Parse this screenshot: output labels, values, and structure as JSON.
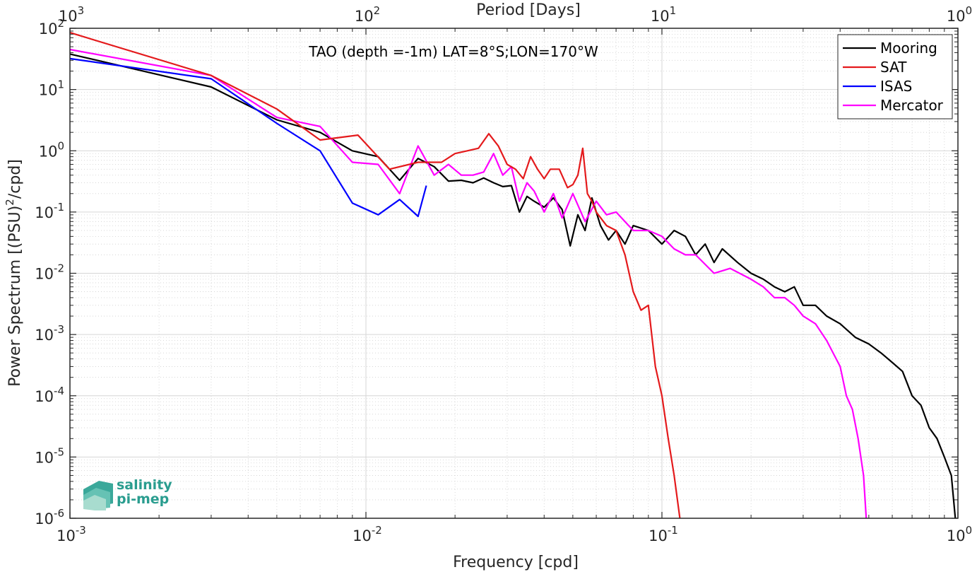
{
  "chart_data": {
    "type": "line",
    "annotation": "TAO (depth =-1m) LAT=8°S;LON=170°W",
    "xlabel": "Frequency [cpd]",
    "ylabel_prefix": "Power Spectrum [(PSU)",
    "ylabel_sup": "2",
    "ylabel_suffix": "/cpd]",
    "top_xlabel": "Period [Days]",
    "x_scale": "log",
    "y_scale": "log",
    "xlim": [
      0.001,
      1
    ],
    "ylim": [
      1e-06,
      100
    ],
    "grid": true,
    "legend_position": "top-right",
    "x_ticks": [
      {
        "value": 0.001,
        "base": "10",
        "exp": "-3"
      },
      {
        "value": 0.01,
        "base": "10",
        "exp": "-2"
      },
      {
        "value": 0.1,
        "base": "10",
        "exp": "-1"
      },
      {
        "value": 1,
        "base": "10",
        "exp": "0"
      }
    ],
    "top_ticks": [
      {
        "value": 0.001,
        "base": "10",
        "exp": "3"
      },
      {
        "value": 0.01,
        "base": "10",
        "exp": "2"
      },
      {
        "value": 0.1,
        "base": "10",
        "exp": "1"
      },
      {
        "value": 1,
        "base": "10",
        "exp": "0"
      }
    ],
    "y_ticks": [
      {
        "value": 100,
        "base": "10",
        "exp": "2"
      },
      {
        "value": 10,
        "base": "10",
        "exp": "1"
      },
      {
        "value": 1,
        "base": "10",
        "exp": "0"
      },
      {
        "value": 0.1,
        "base": "10",
        "exp": "-1"
      },
      {
        "value": 0.01,
        "base": "10",
        "exp": "-2"
      },
      {
        "value": 0.001,
        "base": "10",
        "exp": "-3"
      },
      {
        "value": 0.0001,
        "base": "10",
        "exp": "-4"
      },
      {
        "value": 1e-05,
        "base": "10",
        "exp": "-5"
      },
      {
        "value": 1e-06,
        "base": "10",
        "exp": "-6"
      }
    ],
    "series": [
      {
        "name": "Mooring",
        "color": "#000000",
        "points": [
          [
            0.001,
            38
          ],
          [
            0.003,
            11
          ],
          [
            0.005,
            3.2
          ],
          [
            0.007,
            2
          ],
          [
            0.009,
            1
          ],
          [
            0.011,
            0.8
          ],
          [
            0.013,
            0.33
          ],
          [
            0.015,
            0.75
          ],
          [
            0.017,
            0.55
          ],
          [
            0.019,
            0.32
          ],
          [
            0.021,
            0.33
          ],
          [
            0.023,
            0.3
          ],
          [
            0.025,
            0.36
          ],
          [
            0.027,
            0.3
          ],
          [
            0.029,
            0.26
          ],
          [
            0.031,
            0.27
          ],
          [
            0.033,
            0.1
          ],
          [
            0.035,
            0.18
          ],
          [
            0.037,
            0.15
          ],
          [
            0.04,
            0.12
          ],
          [
            0.043,
            0.17
          ],
          [
            0.046,
            0.11
          ],
          [
            0.049,
            0.028
          ],
          [
            0.052,
            0.09
          ],
          [
            0.055,
            0.05
          ],
          [
            0.058,
            0.17
          ],
          [
            0.062,
            0.06
          ],
          [
            0.066,
            0.035
          ],
          [
            0.07,
            0.05
          ],
          [
            0.075,
            0.03
          ],
          [
            0.08,
            0.06
          ],
          [
            0.09,
            0.05
          ],
          [
            0.1,
            0.03
          ],
          [
            0.11,
            0.05
          ],
          [
            0.12,
            0.04
          ],
          [
            0.13,
            0.02
          ],
          [
            0.14,
            0.03
          ],
          [
            0.15,
            0.015
          ],
          [
            0.16,
            0.025
          ],
          [
            0.18,
            0.015
          ],
          [
            0.2,
            0.01
          ],
          [
            0.22,
            0.008
          ],
          [
            0.24,
            0.006
          ],
          [
            0.26,
            0.005
          ],
          [
            0.28,
            0.006
          ],
          [
            0.3,
            0.003
          ],
          [
            0.33,
            0.003
          ],
          [
            0.36,
            0.002
          ],
          [
            0.4,
            0.0015
          ],
          [
            0.45,
            0.0009
          ],
          [
            0.5,
            0.0007
          ],
          [
            0.55,
            0.0005
          ],
          [
            0.6,
            0.00035
          ],
          [
            0.65,
            0.00025
          ],
          [
            0.7,
            0.0001
          ],
          [
            0.75,
            7e-05
          ],
          [
            0.8,
            3e-05
          ],
          [
            0.85,
            2e-05
          ],
          [
            0.9,
            1e-05
          ],
          [
            0.95,
            5e-06
          ],
          [
            0.98,
            1e-06
          ]
        ]
      },
      {
        "name": "SAT",
        "color": "#e41a1c",
        "points": [
          [
            0.001,
            85
          ],
          [
            0.003,
            17
          ],
          [
            0.005,
            4.8
          ],
          [
            0.007,
            1.5
          ],
          [
            0.0094,
            1.8
          ],
          [
            0.012,
            0.5
          ],
          [
            0.015,
            0.65
          ],
          [
            0.018,
            0.65
          ],
          [
            0.02,
            0.9
          ],
          [
            0.022,
            1
          ],
          [
            0.024,
            1.1
          ],
          [
            0.026,
            1.9
          ],
          [
            0.028,
            1.2
          ],
          [
            0.03,
            0.6
          ],
          [
            0.032,
            0.5
          ],
          [
            0.034,
            0.35
          ],
          [
            0.036,
            0.8
          ],
          [
            0.038,
            0.5
          ],
          [
            0.04,
            0.35
          ],
          [
            0.042,
            0.5
          ],
          [
            0.045,
            0.5
          ],
          [
            0.048,
            0.25
          ],
          [
            0.05,
            0.28
          ],
          [
            0.052,
            0.4
          ],
          [
            0.054,
            1.1
          ],
          [
            0.056,
            0.2
          ],
          [
            0.058,
            0.15
          ],
          [
            0.06,
            0.1
          ],
          [
            0.065,
            0.06
          ],
          [
            0.07,
            0.05
          ],
          [
            0.075,
            0.02
          ],
          [
            0.08,
            0.005
          ],
          [
            0.085,
            0.0025
          ],
          [
            0.09,
            0.003
          ],
          [
            0.095,
            0.0003
          ],
          [
            0.1,
            0.0001
          ],
          [
            0.105,
            2e-05
          ],
          [
            0.11,
            5e-06
          ],
          [
            0.115,
            1e-06
          ]
        ]
      },
      {
        "name": "ISAS",
        "color": "#0000ff",
        "points": [
          [
            0.001,
            32
          ],
          [
            0.003,
            15
          ],
          [
            0.005,
            2.8
          ],
          [
            0.007,
            1
          ],
          [
            0.009,
            0.14
          ],
          [
            0.011,
            0.09
          ],
          [
            0.013,
            0.16
          ],
          [
            0.015,
            0.085
          ],
          [
            0.016,
            0.27
          ]
        ]
      },
      {
        "name": "Mercator",
        "color": "#ff00ff",
        "points": [
          [
            0.001,
            45
          ],
          [
            0.003,
            17
          ],
          [
            0.005,
            3.5
          ],
          [
            0.007,
            2.5
          ],
          [
            0.009,
            0.65
          ],
          [
            0.011,
            0.6
          ],
          [
            0.013,
            0.2
          ],
          [
            0.015,
            1.2
          ],
          [
            0.017,
            0.4
          ],
          [
            0.019,
            0.6
          ],
          [
            0.021,
            0.4
          ],
          [
            0.023,
            0.4
          ],
          [
            0.025,
            0.45
          ],
          [
            0.027,
            0.9
          ],
          [
            0.029,
            0.4
          ],
          [
            0.031,
            0.55
          ],
          [
            0.033,
            0.15
          ],
          [
            0.035,
            0.3
          ],
          [
            0.037,
            0.22
          ],
          [
            0.04,
            0.1
          ],
          [
            0.043,
            0.2
          ],
          [
            0.046,
            0.08
          ],
          [
            0.05,
            0.2
          ],
          [
            0.055,
            0.07
          ],
          [
            0.06,
            0.15
          ],
          [
            0.065,
            0.09
          ],
          [
            0.07,
            0.1
          ],
          [
            0.08,
            0.05
          ],
          [
            0.09,
            0.05
          ],
          [
            0.1,
            0.04
          ],
          [
            0.11,
            0.025
          ],
          [
            0.12,
            0.02
          ],
          [
            0.13,
            0.02
          ],
          [
            0.15,
            0.01
          ],
          [
            0.17,
            0.012
          ],
          [
            0.2,
            0.008
          ],
          [
            0.22,
            0.006
          ],
          [
            0.24,
            0.004
          ],
          [
            0.26,
            0.004
          ],
          [
            0.28,
            0.003
          ],
          [
            0.3,
            0.002
          ],
          [
            0.33,
            0.0015
          ],
          [
            0.36,
            0.0008
          ],
          [
            0.4,
            0.0003
          ],
          [
            0.42,
            0.0001
          ],
          [
            0.44,
            6e-05
          ],
          [
            0.46,
            2e-05
          ],
          [
            0.48,
            5e-06
          ],
          [
            0.49,
            1e-06
          ]
        ]
      }
    ]
  },
  "logo": {
    "line1": "salinity",
    "line2": "pi-mep"
  }
}
